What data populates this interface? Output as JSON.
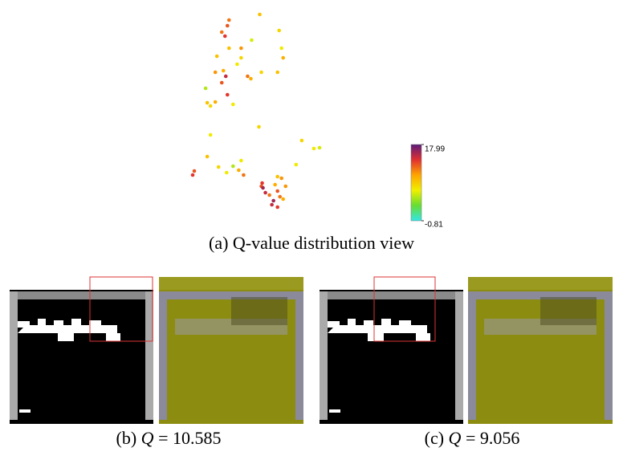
{
  "chart_data": {
    "type": "scatter",
    "caption": "(a) Q-value distribution view",
    "x": [
      285,
      283,
      323,
      280,
      276,
      347,
      313,
      350,
      270,
      300,
      352,
      278,
      281,
      276,
      308,
      312,
      345,
      325,
      295,
      283,
      258,
      268,
      262,
      290,
      256,
      322,
      262,
      375,
      397,
      390,
      258,
      300,
      290,
      272,
      240,
      242,
      297,
      303,
      282,
      345,
      350,
      326,
      330,
      335,
      342,
      345,
      340,
      338,
      345,
      352,
      355,
      348,
      325,
      327,
      368,
      300,
      285,
      268
    ],
    "y": [
      275,
      268,
      282,
      255,
      260,
      262,
      250,
      240,
      230,
      228,
      228,
      212,
      205,
      197,
      205,
      202,
      210,
      210,
      220,
      182,
      172,
      173,
      168,
      170,
      190,
      142,
      132,
      125,
      116,
      115,
      105,
      100,
      93,
      92,
      82,
      87,
      88,
      82,
      85,
      80,
      78,
      72,
      60,
      57,
      70,
      62,
      50,
      45,
      42,
      52,
      68,
      55,
      68,
      66,
      95,
      240,
      240,
      210
    ],
    "values": [
      12,
      13,
      9,
      14,
      12,
      8,
      6,
      7,
      9,
      8,
      10,
      10,
      15,
      13,
      12,
      10,
      9,
      8,
      7,
      14,
      9,
      10,
      8,
      7,
      5,
      8,
      7,
      8,
      6,
      7,
      9,
      7,
      5,
      8,
      14,
      13,
      10,
      12,
      7,
      9,
      11,
      14,
      15,
      12,
      10,
      13,
      16,
      15,
      14,
      10,
      11,
      12,
      13,
      16,
      7,
      11,
      9,
      11
    ],
    "clim": [
      -0.81,
      17.99
    ],
    "colorbar_ticks": [
      17.99,
      -0.81
    ]
  },
  "panels": [
    {
      "caption": [
        "(b) ",
        "Q",
        " = 10.585"
      ]
    },
    {
      "caption": [
        "(c) ",
        "Q",
        " = 9.056"
      ]
    }
  ]
}
